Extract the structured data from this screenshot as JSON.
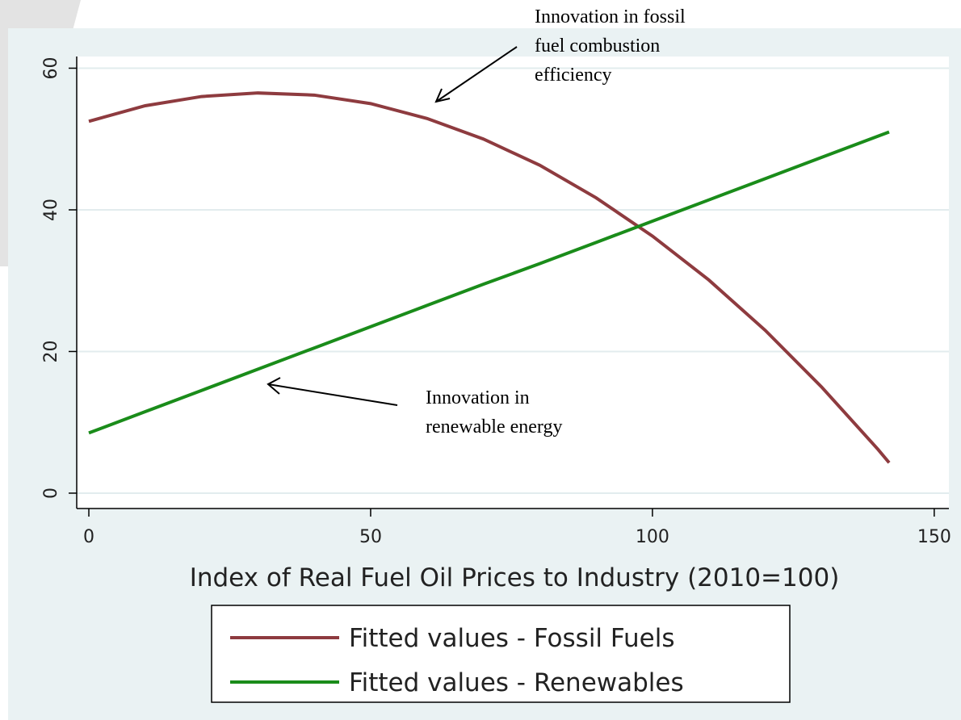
{
  "chart_data": {
    "type": "line",
    "x_label": "Index of Real Fuel Oil Prices to Industry (2010=100)",
    "x": [
      0,
      10,
      20,
      30,
      40,
      50,
      60,
      70,
      80,
      90,
      100,
      110,
      120,
      130,
      140,
      142
    ],
    "series": [
      {
        "name": "Fitted values - Fossil Fuels",
        "color": "#8e3b3f",
        "values": [
          52.5,
          54.7,
          56.0,
          56.5,
          56.2,
          55.0,
          52.9,
          50.0,
          46.3,
          41.7,
          36.3,
          30.1,
          23.0,
          15.0,
          6.2,
          4.3
        ]
      },
      {
        "name": "Fitted values - Renewables",
        "color": "#1a8c1a",
        "values": [
          8.5,
          11.5,
          14.5,
          17.5,
          20.5,
          23.5,
          26.5,
          29.5,
          32.4,
          35.4,
          38.4,
          41.4,
          44.4,
          47.4,
          50.4,
          51.0
        ]
      }
    ],
    "xlim": [
      -2.15,
      152.6
    ],
    "ylim": [
      -2.17,
      61.65
    ],
    "xticks": [
      0,
      50,
      100,
      150
    ],
    "yticks": [
      0,
      20,
      40,
      60
    ],
    "grid": true,
    "annotations": [
      {
        "lines": [
          "Innovation  in fossil",
          "fuel combustion",
          "efficiency"
        ]
      },
      {
        "lines": [
          "Innovation  in",
          "renewable energy"
        ]
      }
    ]
  }
}
